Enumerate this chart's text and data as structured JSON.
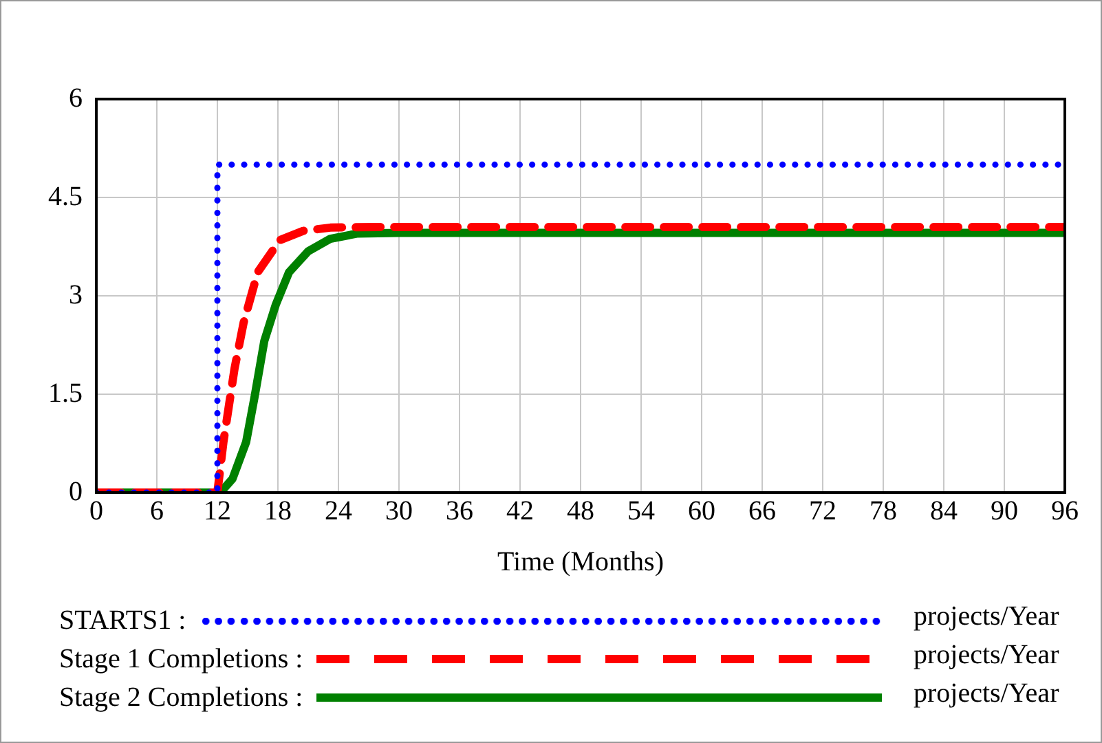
{
  "chart_data": {
    "type": "line",
    "xlabel": "Time (Months)",
    "xlim": [
      0,
      96
    ],
    "xticks": [
      0,
      6,
      12,
      18,
      24,
      30,
      36,
      42,
      48,
      54,
      60,
      66,
      72,
      78,
      84,
      90,
      96
    ],
    "ylim": [
      0,
      6
    ],
    "yticks": [
      0,
      1.5,
      3,
      4.5,
      6
    ],
    "grid": true,
    "legend": "bottom",
    "marker": "none",
    "series": [
      {
        "name": "STARTS1 :",
        "color": "#0000ff",
        "line_style": "dotted",
        "x": [
          0,
          12,
          12,
          96
        ],
        "values": [
          0,
          0,
          5,
          5
        ]
      },
      {
        "name": "Stage 1 Completions :",
        "color": "#ff0000",
        "line_style": "dashed",
        "x": [
          0,
          12,
          12.6,
          13.7,
          14.6,
          16,
          18.2,
          20.5,
          23.2,
          28,
          96
        ],
        "values": [
          0,
          0,
          0.77,
          1.89,
          2.59,
          3.36,
          3.85,
          3.99,
          4.04,
          4.05,
          4.05
        ]
      },
      {
        "name": "Stage 2 Completions :",
        "color": "#008000",
        "line_style": "solid",
        "x": [
          0,
          12.3,
          13.5,
          14.85,
          15.7,
          16.65,
          17.8,
          19.1,
          21,
          23.2,
          25.9,
          30,
          96
        ],
        "values": [
          0,
          0,
          0.21,
          0.77,
          1.47,
          2.31,
          2.87,
          3.36,
          3.68,
          3.87,
          3.95,
          3.96,
          3.96
        ]
      }
    ],
    "annotations": [
      "projects/Year",
      "projects/Year",
      "projects/Year"
    ]
  }
}
